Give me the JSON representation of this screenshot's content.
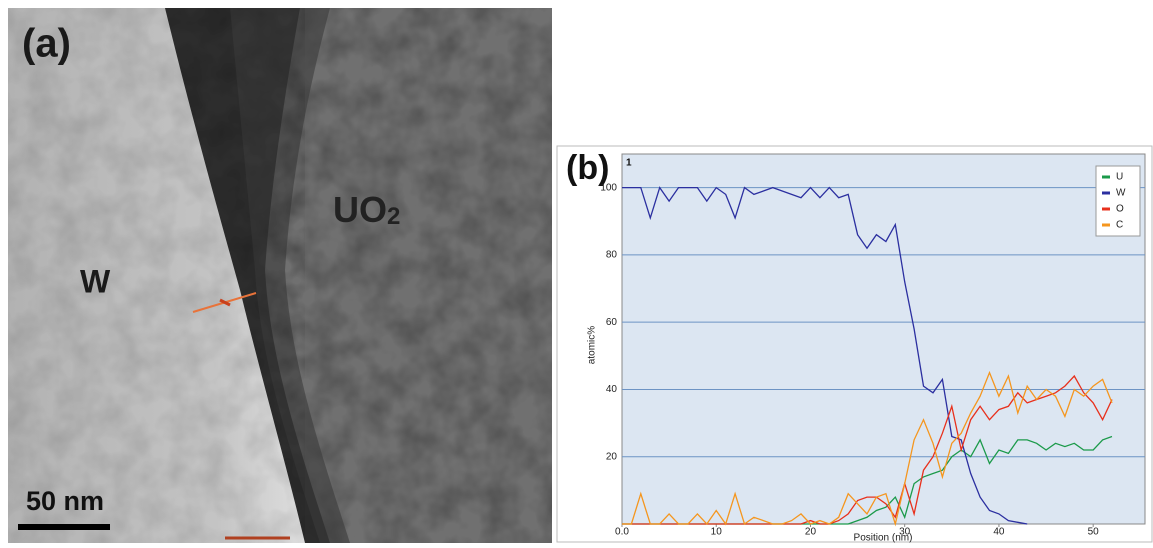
{
  "panel_a": {
    "label": "(a)",
    "region_left": "W",
    "region_right": "UO",
    "region_right_sub": "2",
    "scale_bar": "50 nm"
  },
  "chart_data": {
    "type": "line",
    "panel_label": "(b)",
    "plot_index": "1",
    "x_label": "Position (nm)",
    "y_label": "atomic%",
    "x": [
      0,
      1,
      2,
      3,
      4,
      5,
      6,
      7,
      8,
      9,
      10,
      11,
      12,
      13,
      14,
      15,
      16,
      17,
      18,
      19,
      20,
      21,
      22,
      23,
      24,
      25,
      26,
      27,
      28,
      29,
      30,
      31,
      32,
      33,
      34,
      35,
      36,
      37,
      38,
      39,
      40,
      41,
      42,
      43,
      44,
      45,
      46,
      47,
      48,
      49,
      50,
      51,
      52
    ],
    "series": [
      {
        "name": "U",
        "color": "#1b9a4a",
        "values": [
          0,
          0,
          0,
          0,
          0,
          0,
          0,
          0,
          0,
          0,
          0,
          0,
          0,
          0,
          0,
          0,
          0,
          0,
          0,
          0,
          0,
          0,
          0,
          0,
          0,
          1,
          2,
          4,
          5,
          8,
          2,
          12,
          14,
          15,
          16,
          20,
          22,
          20,
          25,
          18,
          22,
          21,
          25,
          25,
          24,
          22,
          24,
          23,
          24,
          22,
          22,
          25,
          26
        ]
      },
      {
        "name": "W",
        "color": "#2b2fa0",
        "values": [
          100,
          100,
          100,
          91,
          100,
          96,
          100,
          100,
          100,
          96,
          100,
          98,
          91,
          100,
          98,
          99,
          100,
          99,
          98,
          97,
          100,
          97,
          100,
          97,
          98,
          86,
          82,
          86,
          84,
          89,
          72,
          58,
          41,
          39,
          43,
          26,
          25,
          15,
          8,
          4,
          3,
          1,
          0.5,
          0,
          null,
          null,
          null,
          null,
          null,
          null,
          null,
          null,
          null
        ]
      },
      {
        "name": "O",
        "color": "#e8301c",
        "values": [
          0,
          0,
          0,
          0,
          0,
          0,
          0,
          0,
          0,
          0,
          0,
          0,
          0,
          0,
          0,
          0,
          0,
          0,
          0,
          0,
          1,
          0,
          0,
          1,
          3,
          7,
          8,
          8,
          6,
          2,
          12,
          3,
          16,
          20,
          27,
          35,
          22,
          31,
          35,
          31,
          34,
          35,
          39,
          36,
          37,
          38,
          39,
          41,
          44,
          39,
          36,
          31,
          37
        ]
      },
      {
        "name": "C",
        "color": "#f5961e",
        "values": [
          0,
          0,
          9,
          0,
          0,
          3,
          0,
          0,
          3,
          0,
          4,
          0,
          9,
          0,
          2,
          1,
          0,
          0,
          1,
          3,
          0,
          1,
          0,
          2,
          9,
          6,
          3,
          8,
          9,
          0,
          12,
          25,
          31,
          24,
          14,
          24,
          27,
          33,
          38,
          45,
          38,
          44,
          33,
          41,
          37,
          40,
          38,
          32,
          40,
          38,
          41,
          43,
          36
        ]
      }
    ],
    "xlim": [
      0,
      55.5
    ],
    "xticks": [
      {
        "value": 0,
        "label": "0.0"
      },
      10,
      20,
      30,
      40,
      50
    ],
    "ylim": [
      0,
      110
    ],
    "yticks": [
      20,
      40,
      60,
      80,
      100
    ],
    "grid": true,
    "legend": "top-right"
  }
}
